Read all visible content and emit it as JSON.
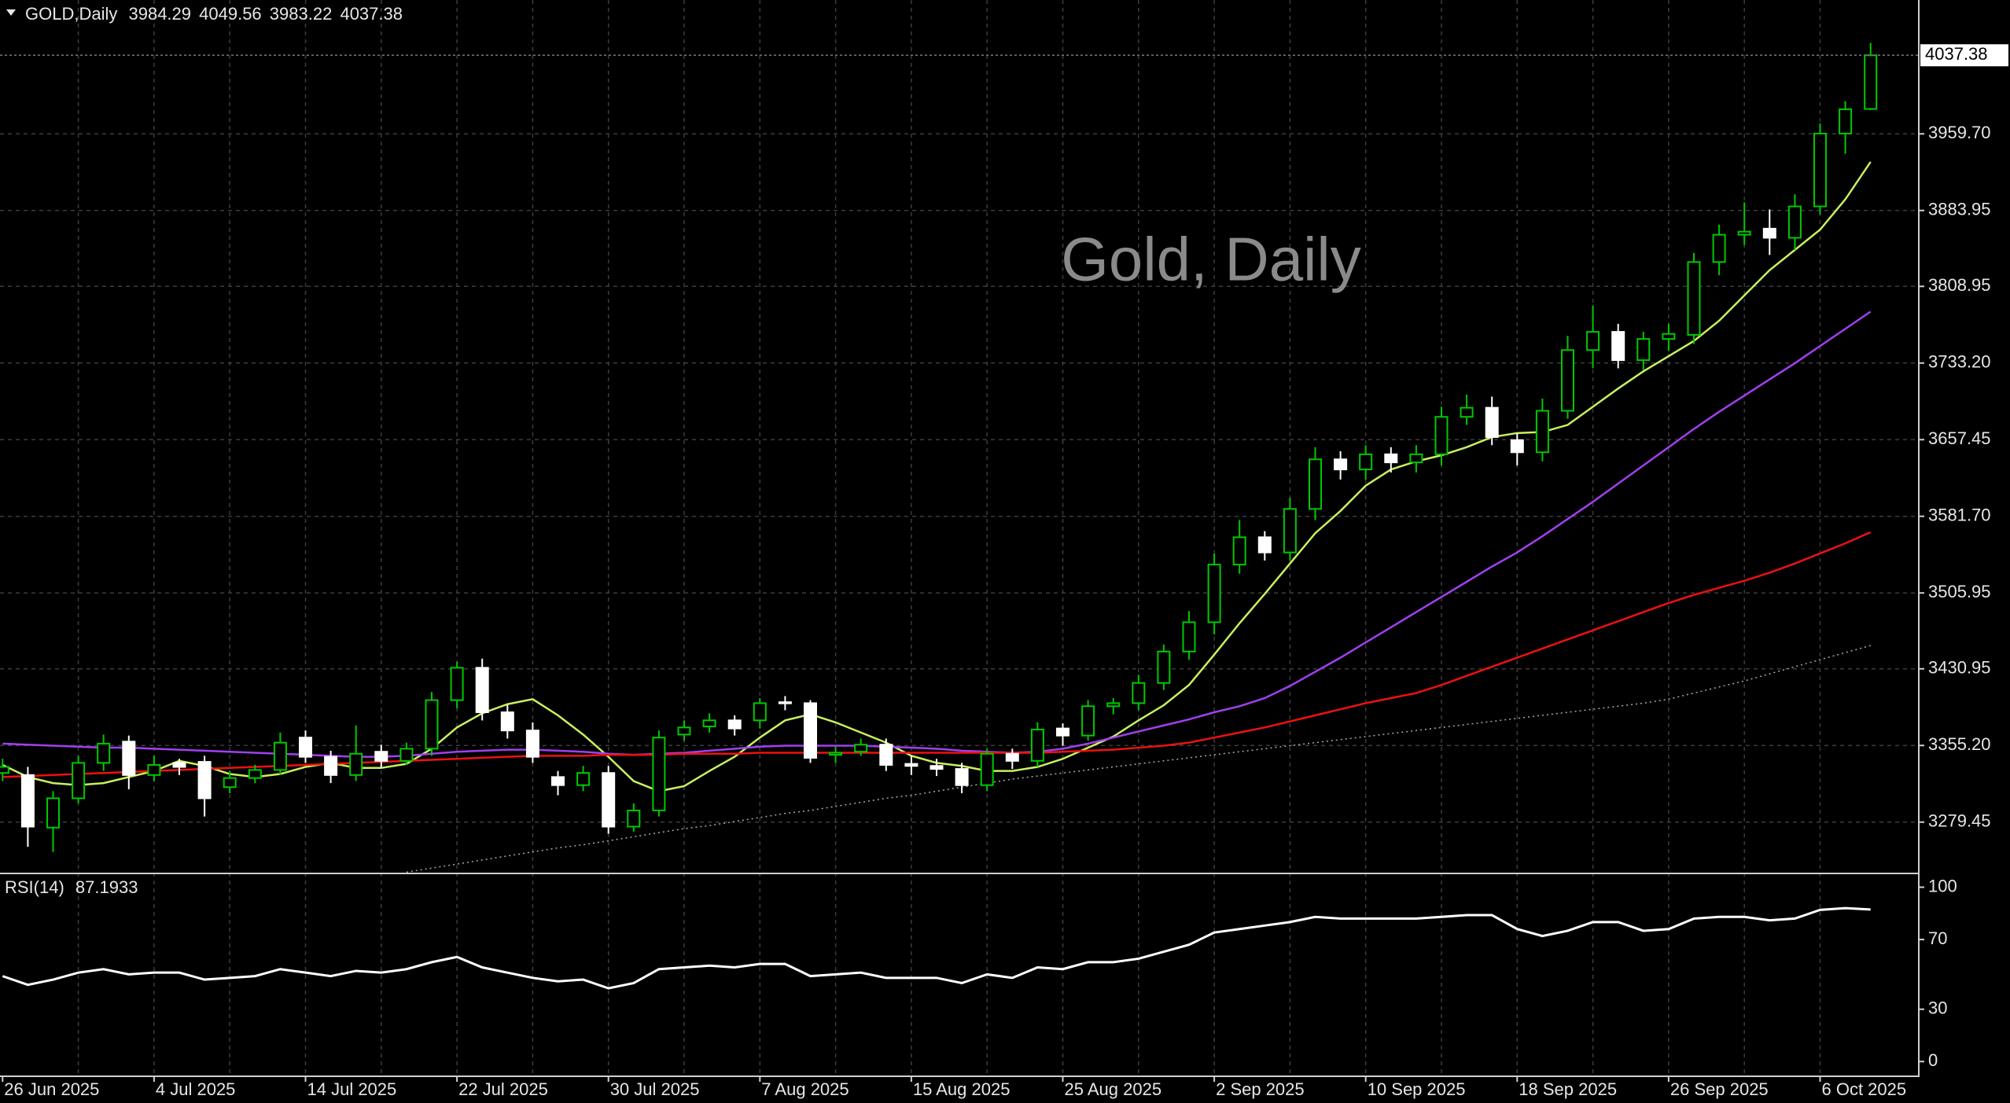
{
  "chart_data": [
    {
      "type": "candlestick",
      "symbol": "GOLD,Daily",
      "watermark": "Gold, Daily",
      "categories": [
        "26 Jun 2025",
        null,
        null,
        null,
        null,
        null,
        "4 Jul 2025",
        null,
        null,
        null,
        null,
        null,
        "14 Jul 2025",
        null,
        null,
        null,
        null,
        null,
        "22 Jul 2025",
        null,
        null,
        null,
        null,
        null,
        "30 Jul 2025",
        null,
        null,
        null,
        null,
        null,
        "7 Aug 2025",
        null,
        null,
        null,
        null,
        null,
        "15 Aug 2025",
        null,
        null,
        null,
        null,
        null,
        "25 Aug 2025",
        null,
        null,
        null,
        null,
        null,
        "2 Sep 2025",
        null,
        null,
        null,
        null,
        null,
        "10 Sep 2025",
        null,
        null,
        null,
        null,
        null,
        "18 Sep 2025",
        null,
        null,
        null,
        null,
        null,
        "26 Sep 2025",
        null,
        null,
        null,
        null,
        null,
        "6 Oct 2025",
        null,
        null
      ],
      "open": [
        3328,
        3326,
        3274,
        3303,
        3338,
        3359,
        3326,
        3338,
        3339,
        3314,
        3323,
        3331,
        3363,
        3344,
        3326,
        3349,
        3340,
        3352,
        3400,
        3432,
        3388,
        3370,
        3324,
        3316,
        3328,
        3275,
        3291,
        3366,
        3374,
        3380,
        3380,
        3398,
        3397,
        3346,
        3349,
        3356,
        3337,
        3335,
        3332,
        3316,
        3347,
        3340,
        3372,
        3365,
        3394,
        3397,
        3417,
        3448,
        3477,
        3534,
        3561,
        3546,
        3589,
        3638,
        3628,
        3643,
        3635,
        3643,
        3680,
        3689,
        3657,
        3645,
        3686,
        3746,
        3764,
        3736,
        3757,
        3761,
        3833,
        3860,
        3866,
        3857,
        3888,
        3960,
        3984.29
      ],
      "high": [
        3342,
        3334,
        3310,
        3345,
        3366,
        3365,
        3345,
        3342,
        3345,
        3330,
        3336,
        3368,
        3370,
        3350,
        3375,
        3356,
        3358,
        3408,
        3438,
        3441,
        3395,
        3378,
        3330,
        3335,
        3335,
        3298,
        3370,
        3380,
        3387,
        3385,
        3402,
        3404,
        3400,
        3354,
        3362,
        3362,
        3345,
        3342,
        3338,
        3352,
        3352,
        3378,
        3377,
        3400,
        3402,
        3425,
        3455,
        3488,
        3545,
        3578,
        3567,
        3600,
        3650,
        3646,
        3652,
        3650,
        3652,
        3690,
        3702,
        3700,
        3664,
        3698,
        3760,
        3790,
        3772,
        3764,
        3772,
        3842,
        3870,
        3892,
        3885,
        3900,
        3970,
        3992,
        4049.56
      ],
      "low": [
        3320,
        3255,
        3250,
        3298,
        3330,
        3312,
        3320,
        3326,
        3285,
        3308,
        3318,
        3326,
        3338,
        3318,
        3320,
        3333,
        3336,
        3345,
        3392,
        3380,
        3362,
        3338,
        3306,
        3310,
        3268,
        3270,
        3285,
        3360,
        3368,
        3365,
        3372,
        3390,
        3338,
        3338,
        3345,
        3330,
        3326,
        3325,
        3308,
        3310,
        3332,
        3334,
        3355,
        3360,
        3386,
        3390,
        3410,
        3440,
        3465,
        3525,
        3538,
        3538,
        3578,
        3618,
        3618,
        3625,
        3625,
        3632,
        3672,
        3652,
        3632,
        3636,
        3678,
        3728,
        3728,
        3726,
        3745,
        3752,
        3820,
        3850,
        3840,
        3845,
        3880,
        3940,
        3983.22
      ],
      "close": [
        3334,
        3275,
        3303,
        3338,
        3357,
        3326,
        3336,
        3334,
        3303,
        3323,
        3331,
        3358,
        3344,
        3326,
        3347,
        3340,
        3352,
        3400,
        3432,
        3388,
        3370,
        3344,
        3316,
        3328,
        3275,
        3291,
        3363,
        3373,
        3380,
        3372,
        3397,
        3397,
        3343,
        3348,
        3356,
        3336,
        3335,
        3332,
        3316,
        3347,
        3340,
        3371,
        3365,
        3394,
        3397,
        3417,
        3448,
        3477,
        3534,
        3561,
        3546,
        3589,
        3638,
        3628,
        3643,
        3635,
        3643,
        3680,
        3689,
        3660,
        3645,
        3686,
        3746,
        3764,
        3736,
        3757,
        3762,
        3833,
        3860,
        3863,
        3857,
        3888,
        3960,
        3984,
        4037.38
      ],
      "up_color": "#00c800",
      "down_color": "#ffffff",
      "series": [
        {
          "color": "#c8f060",
          "style": "solid",
          "values": [
            3336,
            3324,
            3318,
            3316,
            3318,
            3324,
            3330,
            3340,
            3335,
            3327,
            3324,
            3327,
            3334,
            3338,
            3333,
            3333,
            3337,
            3352,
            3373,
            3387,
            3396,
            3401,
            3385,
            3366,
            3344,
            3320,
            3310,
            3315,
            3330,
            3344,
            3363,
            3380,
            3386,
            3378,
            3368,
            3358,
            3345,
            3338,
            3335,
            3330,
            3330,
            3334,
            3342,
            3353,
            3364,
            3380,
            3395,
            3415,
            3445,
            3476,
            3505,
            3535,
            3565,
            3587,
            3612,
            3628,
            3636,
            3642,
            3650,
            3660,
            3664,
            3665,
            3672,
            3690,
            3708,
            3725,
            3740,
            3755,
            3775,
            3800,
            3825,
            3845,
            3865,
            3895,
            3932
          ]
        },
        {
          "color": "#a040f0",
          "style": "solid",
          "values": [
            3357,
            3356,
            3355,
            3354,
            3353,
            3353,
            3352,
            3351,
            3350,
            3349,
            3348,
            3347,
            3346,
            3345,
            3344,
            3344,
            3345,
            3347,
            3349,
            3350,
            3351,
            3351,
            3350,
            3349,
            3347,
            3346,
            3347,
            3348,
            3350,
            3352,
            3354,
            3355,
            3355,
            3355,
            3355,
            3354,
            3353,
            3352,
            3350,
            3349,
            3348,
            3349,
            3352,
            3357,
            3363,
            3369,
            3375,
            3381,
            3388,
            3394,
            3402,
            3414,
            3428,
            3442,
            3457,
            3472,
            3487,
            3502,
            3517,
            3532,
            3546,
            3562,
            3579,
            3596,
            3614,
            3632,
            3650,
            3668,
            3685,
            3701,
            3717,
            3733,
            3750,
            3767,
            3784
          ]
        },
        {
          "color": "#ee1111",
          "style": "solid",
          "values": [
            3324,
            3325,
            3326,
            3327,
            3328,
            3329,
            3330,
            3331,
            3332,
            3333,
            3334,
            3335,
            3336,
            3337,
            3338,
            3339,
            3340,
            3341,
            3342,
            3343,
            3344,
            3345,
            3345,
            3345,
            3346,
            3346,
            3346,
            3347,
            3347,
            3347,
            3348,
            3348,
            3348,
            3348,
            3348,
            3348,
            3348,
            3348,
            3348,
            3348,
            3348,
            3348,
            3349,
            3350,
            3351,
            3353,
            3355,
            3358,
            3363,
            3368,
            3373,
            3379,
            3385,
            3391,
            3397,
            3402,
            3407,
            3415,
            3424,
            3433,
            3442,
            3451,
            3460,
            3469,
            3478,
            3487,
            3496,
            3504,
            3511,
            3518,
            3526,
            3535,
            3545,
            3555,
            3566
          ]
        },
        {
          "color": "#aaaaaa",
          "style": "dotted",
          "values": [
            null,
            null,
            null,
            null,
            null,
            null,
            null,
            null,
            null,
            null,
            null,
            null,
            null,
            null,
            null,
            null,
            3230,
            3234,
            3238,
            3242,
            3246,
            3250,
            3254,
            3257,
            3261,
            3265,
            3269,
            3273,
            3276,
            3280,
            3284,
            3288,
            3291,
            3295,
            3299,
            3303,
            3306,
            3310,
            3314,
            3318,
            3322,
            3325,
            3328,
            3331,
            3334,
            3337,
            3340,
            3343,
            3346,
            3349,
            3352,
            3355,
            3358,
            3361,
            3364,
            3367,
            3370,
            3373,
            3376,
            3379,
            3382,
            3385,
            3388,
            3391,
            3394,
            3397,
            3401,
            3407,
            3413,
            3419,
            3426,
            3433,
            3440,
            3447,
            3454
          ]
        }
      ],
      "ylim": [
        3229.5,
        4092
      ],
      "yticks": [
        3279.45,
        {
          "value": 3355.2,
          "label": "3355.20"
        },
        3430.95,
        3505.95,
        {
          "value": 3581.7,
          "label": "3581.70"
        },
        3657.45,
        {
          "value": 3733.2,
          "label": "3733.20"
        },
        3808.95,
        3883.95,
        {
          "value": 3959.7,
          "label": "3959.70"
        }
      ],
      "grid": true
    },
    {
      "type": "line",
      "title": "RSI(14)",
      "color": "#ffffff",
      "values": [
        49,
        44,
        47,
        51,
        53,
        50,
        51,
        51,
        47,
        48,
        49,
        53,
        51,
        49,
        52,
        51,
        53,
        57,
        60,
        54,
        51,
        48,
        46,
        47,
        42,
        45,
        53,
        54,
        55,
        54,
        56,
        56,
        49,
        50,
        51,
        48,
        48,
        48,
        45,
        50,
        48,
        54,
        53,
        57,
        57,
        59,
        63,
        67,
        74,
        76,
        78,
        80,
        83,
        82,
        82,
        82,
        82,
        83,
        84,
        84,
        76,
        72,
        75,
        80,
        80,
        75,
        76,
        82,
        83,
        83,
        81,
        82,
        87,
        88,
        87.1933
      ],
      "ylim": [
        -8,
        107
      ],
      "yticks": [
        0,
        30,
        70,
        100
      ]
    }
  ]
}
